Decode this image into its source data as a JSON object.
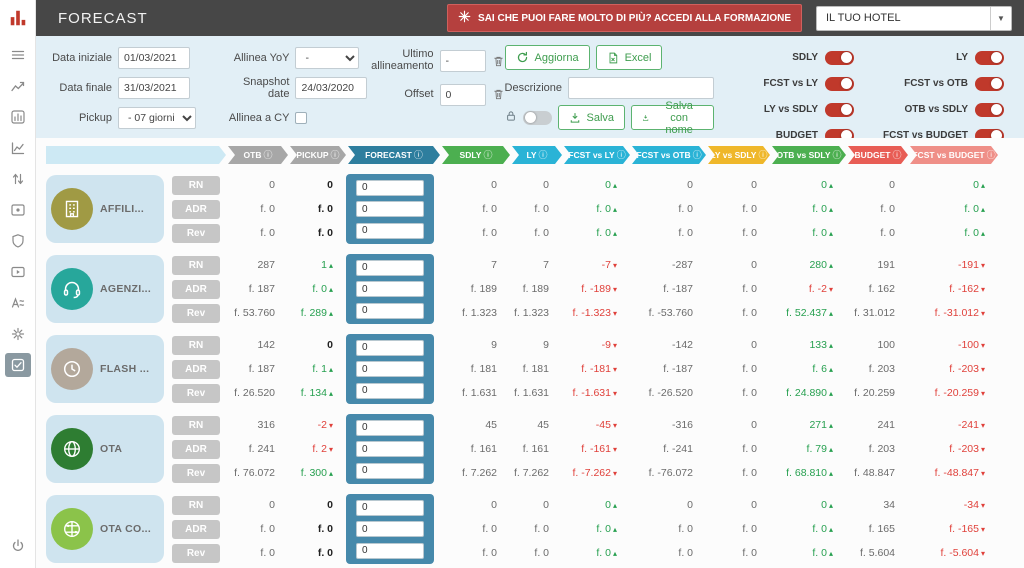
{
  "header": {
    "title": "FORECAST",
    "banner_text": "SAI CHE PUOI FARE MOLTO DI PIÙ? ACCEDI ALLA FORMAZIONE",
    "hotel_selector": "IL TUO HOTEL"
  },
  "filters": {
    "data_iniziale": {
      "label": "Data iniziale",
      "value": "01/03/2021"
    },
    "data_finale": {
      "label": "Data finale",
      "value": "31/03/2021"
    },
    "pickup": {
      "label": "Pickup",
      "value": "- 07 giorni"
    },
    "allinea_yoy": {
      "label": "Allinea YoY",
      "value": "-"
    },
    "snapshot_date": {
      "label": "Snapshot date",
      "value": "24/03/2020"
    },
    "allinea_cy": {
      "label": "Allinea a CY"
    },
    "ultimo_allineamento": {
      "label": "Ultimo allineamento",
      "value": "-"
    },
    "offset": {
      "label": "Offset",
      "value": "0"
    },
    "descrizione": {
      "label": "Descrizione",
      "value": ""
    },
    "buttons": {
      "aggiorna": "Aggiorna",
      "excel": "Excel",
      "salva": "Salva",
      "salva_con_nome": "Salva con nome"
    }
  },
  "toggles": [
    {
      "label": "SDLY",
      "on": true
    },
    {
      "label": "FCST vs LY",
      "on": true
    },
    {
      "label": "LY vs SDLY",
      "on": true
    },
    {
      "label": "BUDGET",
      "on": true
    },
    {
      "label": "LY",
      "on": true
    },
    {
      "label": "FCST vs OTB",
      "on": true
    },
    {
      "label": "OTB vs SDLY",
      "on": true
    },
    {
      "label": "FCST vs BUDGET",
      "on": true
    }
  ],
  "columns": [
    {
      "key": "otb",
      "label": "OTB",
      "color": "#a7a7a7"
    },
    {
      "key": "pickup",
      "label": "PICKUP",
      "color": "#a7a7a7"
    },
    {
      "key": "forecast",
      "label": "FORECAST",
      "color": "#2e7e9e"
    },
    {
      "key": "sdly",
      "label": "SDLY",
      "color": "#4caf50"
    },
    {
      "key": "ly",
      "label": "LY",
      "color": "#2ab3d6"
    },
    {
      "key": "fcst_vs_ly",
      "label": "FCST vs LY",
      "color": "#2ab3d6"
    },
    {
      "key": "fcst_vs_otb",
      "label": "FCST vs OTB",
      "color": "#2ab3d6"
    },
    {
      "key": "ly_vs_sdly",
      "label": "LY vs SDLY",
      "color": "#efb72a"
    },
    {
      "key": "otb_vs_sdly",
      "label": "OTB vs SDLY",
      "color": "#4caf50"
    },
    {
      "key": "budget",
      "label": "BUDGET",
      "color": "#e85d55"
    },
    {
      "key": "fcst_vs_budget",
      "label": "FCST vs BUDGET",
      "color": "#ef8f88"
    }
  ],
  "table": {
    "categories": [
      {
        "name": "AFFILI...",
        "icon": "building-icon",
        "color": "#a09a44",
        "forecast": [
          "0",
          "0",
          "0"
        ],
        "rows": [
          {
            "label": "RN",
            "cells": [
              {
                "v": "0"
              },
              {
                "v": "0",
                "bold": true
              },
              {
                "v": "0"
              },
              {
                "v": "0"
              },
              {
                "v": "0",
                "dir": "up"
              },
              {
                "v": "0"
              },
              {
                "v": "0"
              },
              {
                "v": "0",
                "dir": "up"
              },
              {
                "v": "0"
              },
              {
                "v": "0",
                "dir": "up"
              }
            ]
          },
          {
            "label": "ADR",
            "cells": [
              {
                "v": "f. 0"
              },
              {
                "v": "f. 0",
                "bold": true
              },
              {
                "v": "f. 0"
              },
              {
                "v": "f. 0"
              },
              {
                "v": "f. 0",
                "dir": "up"
              },
              {
                "v": "f. 0"
              },
              {
                "v": "f. 0"
              },
              {
                "v": "f. 0",
                "dir": "up"
              },
              {
                "v": "f. 0"
              },
              {
                "v": "f. 0",
                "dir": "up"
              }
            ]
          },
          {
            "label": "Rev",
            "cells": [
              {
                "v": "f. 0"
              },
              {
                "v": "f. 0",
                "bold": true
              },
              {
                "v": "f. 0"
              },
              {
                "v": "f. 0"
              },
              {
                "v": "f. 0",
                "dir": "up"
              },
              {
                "v": "f. 0"
              },
              {
                "v": "f. 0"
              },
              {
                "v": "f. 0",
                "dir": "up"
              },
              {
                "v": "f. 0"
              },
              {
                "v": "f. 0",
                "dir": "up"
              }
            ]
          }
        ]
      },
      {
        "name": "AGENZI...",
        "icon": "headset-icon",
        "color": "#27a79b",
        "forecast": [
          "0",
          "0",
          "0"
        ],
        "rows": [
          {
            "label": "RN",
            "cells": [
              {
                "v": "287"
              },
              {
                "v": "1",
                "dir": "up"
              },
              {
                "v": "7"
              },
              {
                "v": "7"
              },
              {
                "v": "-7",
                "dir": "down"
              },
              {
                "v": "-287"
              },
              {
                "v": "0"
              },
              {
                "v": "280",
                "dir": "up"
              },
              {
                "v": "191"
              },
              {
                "v": "-191",
                "dir": "down"
              }
            ]
          },
          {
            "label": "ADR",
            "cells": [
              {
                "v": "f. 187"
              },
              {
                "v": "f. 0",
                "dir": "up"
              },
              {
                "v": "f. 189"
              },
              {
                "v": "f. 189"
              },
              {
                "v": "f. -189",
                "dir": "down"
              },
              {
                "v": "f. -187"
              },
              {
                "v": "f. 0"
              },
              {
                "v": "f. -2",
                "dir": "down"
              },
              {
                "v": "f. 162"
              },
              {
                "v": "f. -162",
                "dir": "down"
              }
            ]
          },
          {
            "label": "Rev",
            "cells": [
              {
                "v": "f. 53.760"
              },
              {
                "v": "f. 289",
                "dir": "up"
              },
              {
                "v": "f. 1.323"
              },
              {
                "v": "f. 1.323"
              },
              {
                "v": "f. -1.323",
                "dir": "down"
              },
              {
                "v": "f. -53.760"
              },
              {
                "v": "f. 0"
              },
              {
                "v": "f. 52.437",
                "dir": "up"
              },
              {
                "v": "f. 31.012"
              },
              {
                "v": "f. -31.012",
                "dir": "down"
              }
            ]
          }
        ]
      },
      {
        "name": "FLASH ...",
        "icon": "clock-icon",
        "color": "#b3a89b",
        "forecast": [
          "0",
          "0",
          "0"
        ],
        "rows": [
          {
            "label": "RN",
            "cells": [
              {
                "v": "142"
              },
              {
                "v": "0",
                "bold": true
              },
              {
                "v": "9"
              },
              {
                "v": "9"
              },
              {
                "v": "-9",
                "dir": "down"
              },
              {
                "v": "-142"
              },
              {
                "v": "0"
              },
              {
                "v": "133",
                "dir": "up"
              },
              {
                "v": "100"
              },
              {
                "v": "-100",
                "dir": "down"
              }
            ]
          },
          {
            "label": "ADR",
            "cells": [
              {
                "v": "f. 187"
              },
              {
                "v": "f. 1",
                "dir": "up"
              },
              {
                "v": "f. 181"
              },
              {
                "v": "f. 181"
              },
              {
                "v": "f. -181",
                "dir": "down"
              },
              {
                "v": "f. -187"
              },
              {
                "v": "f. 0"
              },
              {
                "v": "f. 6",
                "dir": "up"
              },
              {
                "v": "f. 203"
              },
              {
                "v": "f. -203",
                "dir": "down"
              }
            ]
          },
          {
            "label": "Rev",
            "cells": [
              {
                "v": "f. 26.520"
              },
              {
                "v": "f. 134",
                "dir": "up"
              },
              {
                "v": "f. 1.631"
              },
              {
                "v": "f. 1.631"
              },
              {
                "v": "f. -1.631",
                "dir": "down"
              },
              {
                "v": "f. -26.520"
              },
              {
                "v": "f. 0"
              },
              {
                "v": "f. 24.890",
                "dir": "up"
              },
              {
                "v": "f. 20.259"
              },
              {
                "v": "f. -20.259",
                "dir": "down"
              }
            ]
          }
        ]
      },
      {
        "name": "OTA",
        "icon": "globe-icon",
        "color": "#2e7d32",
        "forecast": [
          "0",
          "0",
          "0"
        ],
        "rows": [
          {
            "label": "RN",
            "cells": [
              {
                "v": "316"
              },
              {
                "v": "-2",
                "dir": "down"
              },
              {
                "v": "45"
              },
              {
                "v": "45"
              },
              {
                "v": "-45",
                "dir": "down"
              },
              {
                "v": "-316"
              },
              {
                "v": "0"
              },
              {
                "v": "271",
                "dir": "up"
              },
              {
                "v": "241"
              },
              {
                "v": "-241",
                "dir": "down"
              }
            ]
          },
          {
            "label": "ADR",
            "cells": [
              {
                "v": "f. 241"
              },
              {
                "v": "f. 2",
                "dir": "down"
              },
              {
                "v": "f. 161"
              },
              {
                "v": "f. 161"
              },
              {
                "v": "f. -161",
                "dir": "down"
              },
              {
                "v": "f. -241"
              },
              {
                "v": "f. 0"
              },
              {
                "v": "f. 79",
                "dir": "up"
              },
              {
                "v": "f. 203"
              },
              {
                "v": "f. -203",
                "dir": "down"
              }
            ]
          },
          {
            "label": "Rev",
            "cells": [
              {
                "v": "f. 76.072"
              },
              {
                "v": "f. 300",
                "dir": "up"
              },
              {
                "v": "f. 7.262"
              },
              {
                "v": "f. 7.262"
              },
              {
                "v": "f. -7.262",
                "dir": "down"
              },
              {
                "v": "f. -76.072"
              },
              {
                "v": "f. 0"
              },
              {
                "v": "f. 68.810",
                "dir": "up"
              },
              {
                "v": "f. 48.847"
              },
              {
                "v": "f. -48.847",
                "dir": "down"
              }
            ]
          }
        ]
      },
      {
        "name": "OTA CO...",
        "icon": "network-icon",
        "color": "#8bc34a",
        "forecast": [
          "0",
          "0",
          "0"
        ],
        "rows": [
          {
            "label": "RN",
            "cells": [
              {
                "v": "0"
              },
              {
                "v": "0",
                "bold": true
              },
              {
                "v": "0"
              },
              {
                "v": "0"
              },
              {
                "v": "0",
                "dir": "up"
              },
              {
                "v": "0"
              },
              {
                "v": "0"
              },
              {
                "v": "0",
                "dir": "up"
              },
              {
                "v": "34"
              },
              {
                "v": "-34",
                "dir": "down"
              }
            ]
          },
          {
            "label": "ADR",
            "cells": [
              {
                "v": "f. 0"
              },
              {
                "v": "f. 0",
                "bold": true
              },
              {
                "v": "f. 0"
              },
              {
                "v": "f. 0"
              },
              {
                "v": "f. 0",
                "dir": "up"
              },
              {
                "v": "f. 0"
              },
              {
                "v": "f. 0"
              },
              {
                "v": "f. 0",
                "dir": "up"
              },
              {
                "v": "f. 165"
              },
              {
                "v": "f. -165",
                "dir": "down"
              }
            ]
          },
          {
            "label": "Rev",
            "cells": [
              {
                "v": "f. 0"
              },
              {
                "v": "f. 0",
                "bold": true
              },
              {
                "v": "f. 0"
              },
              {
                "v": "f. 0"
              },
              {
                "v": "f. 0",
                "dir": "up"
              },
              {
                "v": "f. 0"
              },
              {
                "v": "f. 0"
              },
              {
                "v": "f. 0",
                "dir": "up"
              },
              {
                "v": "f. 5.604"
              },
              {
                "v": "f. -5.604",
                "dir": "down"
              }
            ]
          }
        ]
      }
    ]
  }
}
